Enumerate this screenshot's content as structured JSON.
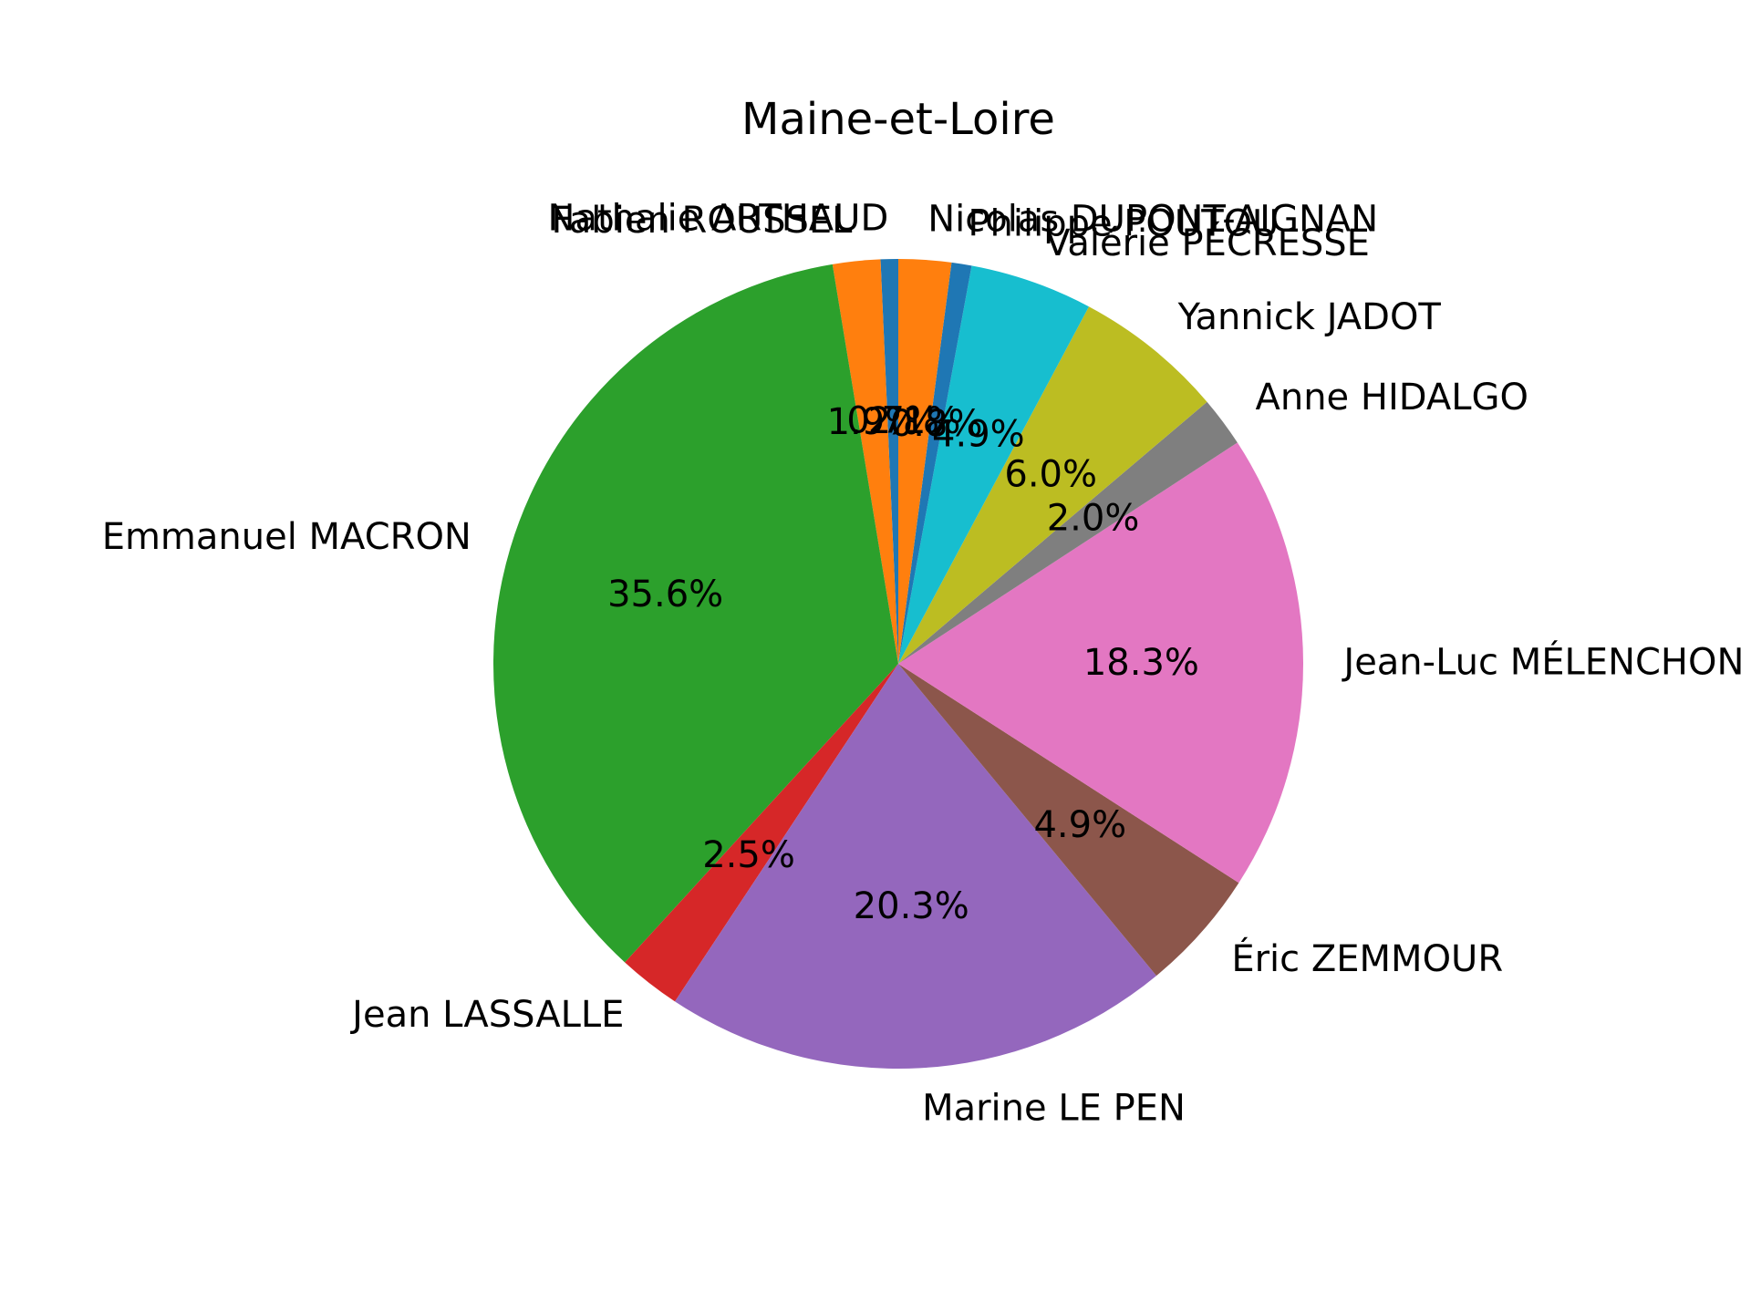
{
  "chart_data": {
    "type": "pie",
    "title": "Maine-et-Loire",
    "start_angle_deg": 90,
    "direction": "counterclockwise",
    "slices": [
      {
        "label": "Nathalie ARTHAUD",
        "value": 0.7,
        "pct_label": "0.7%",
        "color": "#1f77b4"
      },
      {
        "label": "Fabien ROUSSEL",
        "value": 1.9,
        "pct_label": "1.9%",
        "color": "#ff7f0e"
      },
      {
        "label": "Emmanuel MACRON",
        "value": 35.6,
        "pct_label": "35.6%",
        "color": "#2ca02c"
      },
      {
        "label": "Jean LASSALLE",
        "value": 2.5,
        "pct_label": "2.5%",
        "color": "#d62728"
      },
      {
        "label": "Marine LE PEN",
        "value": 20.3,
        "pct_label": "20.3%",
        "color": "#9467bd"
      },
      {
        "label": "Éric ZEMMOUR",
        "value": 4.9,
        "pct_label": "4.9%",
        "color": "#8c564b"
      },
      {
        "label": "Jean-Luc MÉLENCHON",
        "value": 18.3,
        "pct_label": "18.3%",
        "color": "#e377c2"
      },
      {
        "label": "Anne HIDALGO",
        "value": 2.0,
        "pct_label": "2.0%",
        "color": "#7f7f7f"
      },
      {
        "label": "Yannick JADOT",
        "value": 6.0,
        "pct_label": "6.0%",
        "color": "#bcbd22"
      },
      {
        "label": "Valérie PÉCRESSE",
        "value": 4.9,
        "pct_label": "4.9%",
        "color": "#17becf"
      },
      {
        "label": "Philippe POUTOU",
        "value": 0.8,
        "pct_label": "0.8%",
        "color": "#1f77b4"
      },
      {
        "label": "Nicolas DUPONT-AIGNAN",
        "value": 2.1,
        "pct_label": "2.1%",
        "color": "#ff7f0e"
      }
    ]
  }
}
